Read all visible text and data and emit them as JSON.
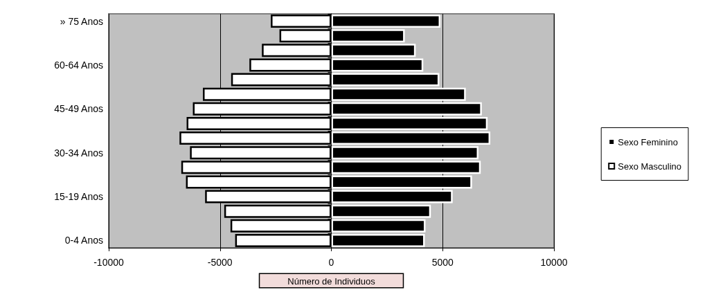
{
  "chart_data": {
    "type": "bar",
    "orientation": "horizontal",
    "stacked": true,
    "xlabel": "Número de Individuos",
    "categories": [
      "» 75 Anos",
      null,
      null,
      "60-64 Anos",
      null,
      null,
      "45-49 Anos",
      null,
      null,
      "30-34 Anos",
      null,
      null,
      "15-19 Anos",
      null,
      null,
      "0-4 Anos"
    ],
    "series": [
      {
        "name": "Sexo Feminino",
        "color": "#000000",
        "values": [
          4900,
          3300,
          3790,
          4130,
          4850,
          6040,
          6760,
          7020,
          7140,
          6610,
          6710,
          6320,
          5450,
          4470,
          4230,
          4200
        ]
      },
      {
        "name": "Sexo Masculino",
        "color": "#ffffff",
        "values": [
          -2720,
          -2330,
          -3120,
          -3680,
          -4500,
          -5770,
          -6220,
          -6500,
          -6820,
          -6350,
          -6740,
          -6530,
          -5670,
          -4810,
          -4530,
          -4320
        ]
      }
    ],
    "xlim": [
      -10000,
      10000
    ],
    "xticks": [
      -10000,
      -5000,
      0,
      5000,
      10000
    ],
    "grid": "x",
    "legend": "right"
  }
}
